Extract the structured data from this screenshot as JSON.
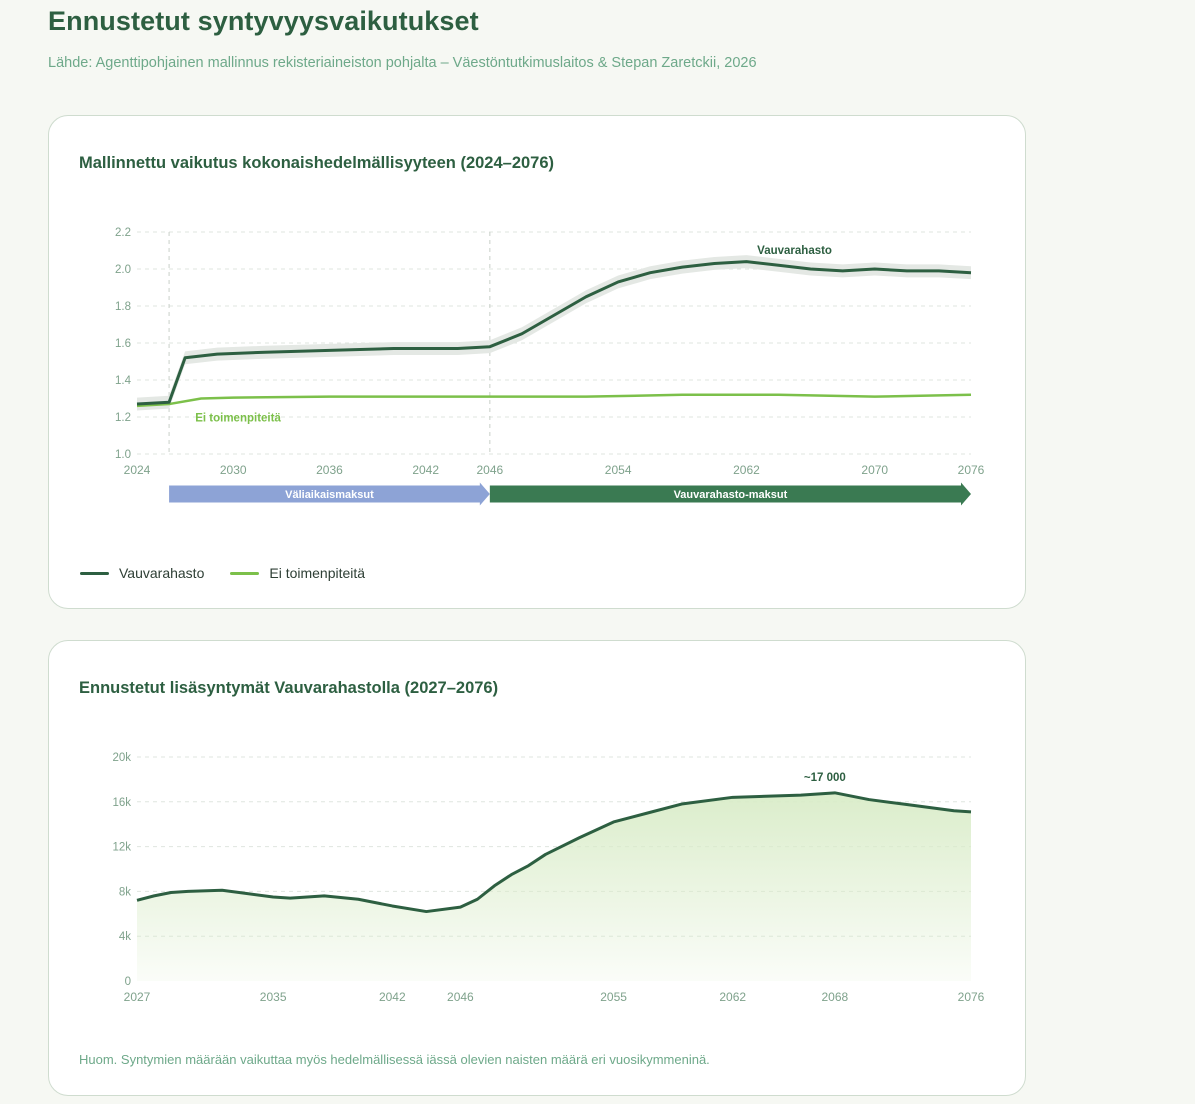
{
  "page": {
    "title": "Ennustetut syntyvyysvaikutukset",
    "source": "Lähde: Agenttipohjainen mallinnus rekisteriaineiston pohjalta – Väestöntutkimuslaitos & Stepan Zaretckii, 2026"
  },
  "colors": {
    "dark_green": "#2d5f41",
    "light_green": "#7cc04a",
    "phase1": "#8da3d6",
    "phase2": "#3a7a52",
    "band": "#e4e8e4",
    "area_fill": "#d9ecc8"
  },
  "chart_data": [
    {
      "type": "line",
      "title": "Mallinnettu vaikutus kokonaishedelmällisyyteen (2024–2076)",
      "xlabel": "",
      "ylabel": "",
      "xlim": [
        2024,
        2076
      ],
      "ylim": [
        1.0,
        2.2
      ],
      "x_ticks": [
        2024,
        2030,
        2036,
        2042,
        2046,
        2054,
        2062,
        2070,
        2076
      ],
      "y_ticks": [
        1.0,
        1.2,
        1.4,
        1.6,
        1.8,
        2.0,
        2.2
      ],
      "y_tick_labels": [
        "1.0",
        "1.2",
        "1.4",
        "1.6",
        "1.8",
        "2.0",
        "2.2"
      ],
      "grid": true,
      "vlines": [
        2026,
        2046
      ],
      "legend_position": "bottom-left",
      "series": [
        {
          "name": "Vauvarahasto",
          "label": "Vauvarahasto",
          "x": [
            2024,
            2026,
            2027,
            2029,
            2032,
            2036,
            2040,
            2044,
            2046,
            2048,
            2050,
            2052,
            2054,
            2056,
            2058,
            2060,
            2062,
            2064,
            2066,
            2068,
            2070,
            2072,
            2074,
            2076
          ],
          "y": [
            1.27,
            1.28,
            1.52,
            1.54,
            1.55,
            1.56,
            1.57,
            1.57,
            1.58,
            1.65,
            1.75,
            1.85,
            1.93,
            1.98,
            2.01,
            2.03,
            2.04,
            2.02,
            2.0,
            1.99,
            2.0,
            1.99,
            1.99,
            1.98
          ],
          "band_halfwidth": 0.035
        },
        {
          "name": "Ei toimenpiteitä",
          "label": "Ei toimenpiteitä",
          "x": [
            2024,
            2026,
            2028,
            2030,
            2036,
            2042,
            2046,
            2052,
            2058,
            2064,
            2070,
            2076
          ],
          "y": [
            1.26,
            1.27,
            1.3,
            1.305,
            1.31,
            1.31,
            1.31,
            1.31,
            1.32,
            1.32,
            1.31,
            1.32
          ]
        }
      ],
      "phases": [
        {
          "label": "Väliaikaismaksut",
          "from": 2026,
          "to": 2046
        },
        {
          "label": "Vauvarahasto-maksut",
          "from": 2046,
          "to": 2076
        }
      ]
    },
    {
      "type": "area",
      "title": "Ennustetut lisäsyntymät Vauvarahastolla (2027–2076)",
      "xlabel": "",
      "ylabel": "",
      "xlim": [
        2027,
        2076
      ],
      "ylim": [
        0,
        20000
      ],
      "x_ticks": [
        2027,
        2035,
        2042,
        2046,
        2055,
        2062,
        2068,
        2076
      ],
      "y_ticks": [
        0,
        4000,
        8000,
        12000,
        16000,
        20000
      ],
      "y_tick_labels": [
        "0",
        "4k",
        "8k",
        "12k",
        "16k",
        "20k"
      ],
      "grid": true,
      "annotation": {
        "label": "~17 000",
        "x": 2068,
        "y": 16800
      },
      "series": [
        {
          "name": "Lisäsyntymät",
          "x": [
            2027,
            2028,
            2029,
            2030,
            2032,
            2033,
            2035,
            2036,
            2037,
            2038,
            2040,
            2042,
            2044,
            2046,
            2047,
            2048,
            2049,
            2050,
            2051,
            2053,
            2055,
            2057,
            2059,
            2062,
            2066,
            2068,
            2070,
            2072,
            2074,
            2075,
            2076
          ],
          "y": [
            7200,
            7600,
            7900,
            8000,
            8100,
            7900,
            7500,
            7400,
            7500,
            7600,
            7300,
            6700,
            6200,
            6600,
            7300,
            8500,
            9500,
            10300,
            11300,
            12800,
            14200,
            15000,
            15800,
            16400,
            16600,
            16800,
            16200,
            15800,
            15400,
            15200,
            15100
          ]
        }
      ]
    }
  ],
  "legend": [
    {
      "label": "Vauvarahasto",
      "color": "#2d5f41"
    },
    {
      "label": "Ei toimenpiteitä",
      "color": "#7cc04a"
    }
  ],
  "note": "Huom. Syntymien määrään vaikuttaa myös hedelmällisessä iässä olevien naisten määrä eri vuosikymmeninä."
}
